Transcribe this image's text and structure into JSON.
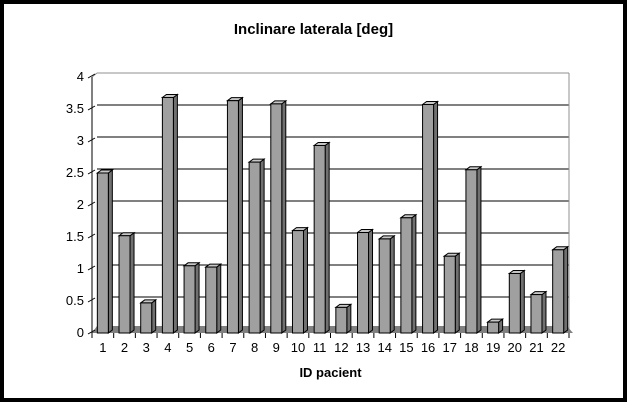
{
  "chart_data": {
    "type": "bar",
    "title": "Inclinare laterala [deg]",
    "xlabel": "ID pacient",
    "ylabel": "",
    "categories": [
      "1",
      "2",
      "3",
      "4",
      "5",
      "6",
      "7",
      "8",
      "9",
      "10",
      "11",
      "12",
      "13",
      "14",
      "15",
      "16",
      "17",
      "18",
      "19",
      "20",
      "21",
      "22"
    ],
    "values": [
      2.5,
      1.52,
      0.47,
      3.68,
      1.05,
      1.03,
      3.63,
      2.67,
      3.58,
      1.6,
      2.93,
      0.4,
      1.57,
      1.47,
      1.8,
      3.57,
      1.2,
      2.55,
      0.17,
      0.93,
      0.6,
      1.3
    ],
    "ylim": [
      0,
      4
    ],
    "ytick_step": 0.5,
    "yticks": [
      0,
      0.5,
      1,
      1.5,
      2,
      2.5,
      3,
      3.5,
      4
    ],
    "ytick_labels": [
      "0",
      "0.5",
      "1",
      "1.5",
      "2",
      "2.5",
      "3",
      "3.5",
      "4"
    ],
    "grid": "horizontal",
    "legend": "none",
    "style": "3d-effect-bars",
    "colors": {
      "bar_front": "#A0A0A0",
      "bar_side": "#707070",
      "bar_top": "#C8C8C8",
      "bar_outline": "#000000",
      "floor": "#808080",
      "gridline": "#000000",
      "wall_edge": "#909090",
      "background": "#FFFFFF",
      "frame_border": "#000000",
      "text": "#000000"
    }
  }
}
